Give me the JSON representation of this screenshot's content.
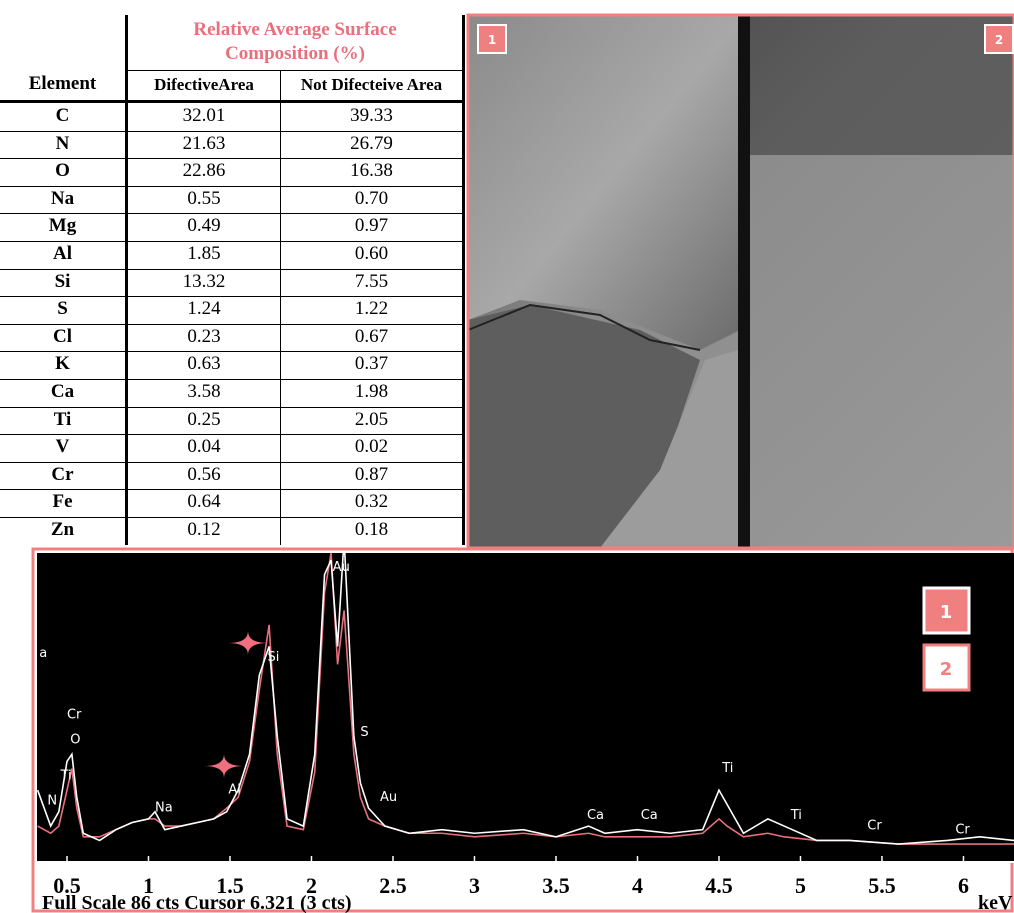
{
  "table": {
    "group_header": "Relative Average Surface Composition (%)",
    "columns": [
      "Element",
      "DifectiveArea",
      "Not Difecteive Area"
    ],
    "rows": [
      [
        "C",
        "32.01",
        "39.33"
      ],
      [
        "N",
        "21.63",
        "26.79"
      ],
      [
        "O",
        "22.86",
        "16.38"
      ],
      [
        "Na",
        "0.55",
        "0.70"
      ],
      [
        "Mg",
        "0.49",
        "0.97"
      ],
      [
        "Al",
        "1.85",
        "0.60"
      ],
      [
        "Si",
        "13.32",
        "7.55"
      ],
      [
        "S",
        "1.24",
        "1.22"
      ],
      [
        "Cl",
        "0.23",
        "0.67"
      ],
      [
        "K",
        "0.63",
        "0.37"
      ],
      [
        "Ca",
        "3.58",
        "1.98"
      ],
      [
        "Ti",
        "0.25",
        "2.05"
      ],
      [
        "V",
        "0.04",
        "0.02"
      ],
      [
        "Cr",
        "0.56",
        "0.87"
      ],
      [
        "Fe",
        "0.64",
        "0.32"
      ],
      [
        "Zn",
        "0.12",
        "0.18"
      ]
    ]
  },
  "image": {
    "labels": [
      "1",
      "2"
    ]
  },
  "spectrum": {
    "xlim": [
      0.316,
      6.31
    ],
    "ylim": [
      0,
      86
    ],
    "xticks": [
      0.5,
      1,
      1.5,
      2,
      2.5,
      3,
      3.5,
      4,
      4.5,
      5,
      5.5,
      6
    ],
    "x_unit": "keV",
    "footer": "Full Scale 86 cts Cursor 6.321 (3 cts)",
    "legend": [
      "1",
      "2"
    ],
    "x": [
      0.32,
      0.4,
      0.45,
      0.5,
      0.53,
      0.56,
      0.6,
      0.7,
      0.8,
      0.9,
      1.0,
      1.04,
      1.1,
      1.2,
      1.3,
      1.4,
      1.48,
      1.55,
      1.62,
      1.68,
      1.74,
      1.79,
      1.85,
      1.95,
      2.02,
      2.08,
      2.12,
      2.16,
      2.2,
      2.26,
      2.3,
      2.35,
      2.45,
      2.6,
      2.8,
      3.0,
      3.3,
      3.5,
      3.7,
      3.8,
      4.0,
      4.2,
      4.4,
      4.5,
      4.55,
      4.65,
      4.8,
      4.9,
      5.1,
      5.3,
      5.6,
      5.9,
      6.1,
      6.31
    ],
    "series": [
      {
        "name": "1",
        "color": "#ffffff",
        "values": [
          20,
          10,
          14,
          28,
          30,
          18,
          8,
          6,
          9,
          11,
          12,
          14,
          9,
          10,
          11,
          12,
          14,
          20,
          30,
          52,
          60,
          35,
          12,
          10,
          30,
          80,
          84,
          60,
          90,
          35,
          22,
          15,
          10,
          8,
          9,
          8,
          9,
          7,
          10,
          8,
          9,
          8,
          9,
          20,
          16,
          8,
          12,
          10,
          6,
          6,
          5,
          6,
          7,
          6
        ]
      },
      {
        "name": "2",
        "color": "#e8707c",
        "values": [
          10,
          8,
          10,
          20,
          26,
          15,
          7,
          7,
          9,
          11,
          12,
          12,
          10,
          10,
          11,
          12,
          15,
          18,
          28,
          48,
          66,
          30,
          10,
          9,
          25,
          75,
          86,
          55,
          70,
          30,
          18,
          12,
          10,
          8,
          8,
          7,
          8,
          7,
          8,
          7,
          7,
          7,
          8,
          12,
          10,
          7,
          8,
          7,
          6,
          6,
          5,
          5,
          5,
          5
        ]
      }
    ],
    "peak_labels": [
      {
        "label": "a",
        "x": 0.33,
        "y": 57
      },
      {
        "label": "Cr",
        "x": 0.5,
        "y": 40
      },
      {
        "label": "O",
        "x": 0.52,
        "y": 33
      },
      {
        "label": "Ti",
        "x": 0.46,
        "y": 23
      },
      {
        "label": "N",
        "x": 0.38,
        "y": 16
      },
      {
        "label": "Na",
        "x": 1.04,
        "y": 14
      },
      {
        "label": "Al",
        "x": 1.49,
        "y": 19
      },
      {
        "label": "Si",
        "x": 1.73,
        "y": 56
      },
      {
        "label": "Au",
        "x": 2.13,
        "y": 81
      },
      {
        "label": "S",
        "x": 2.3,
        "y": 35
      },
      {
        "label": "Au",
        "x": 2.42,
        "y": 17
      },
      {
        "label": "Ca",
        "x": 3.69,
        "y": 12
      },
      {
        "label": "Ca",
        "x": 4.02,
        "y": 12
      },
      {
        "label": "Ti",
        "x": 4.52,
        "y": 25
      },
      {
        "label": "Ti",
        "x": 4.94,
        "y": 12
      },
      {
        "label": "Cr",
        "x": 5.41,
        "y": 9
      },
      {
        "label": "Cr",
        "x": 5.95,
        "y": 8
      }
    ]
  }
}
